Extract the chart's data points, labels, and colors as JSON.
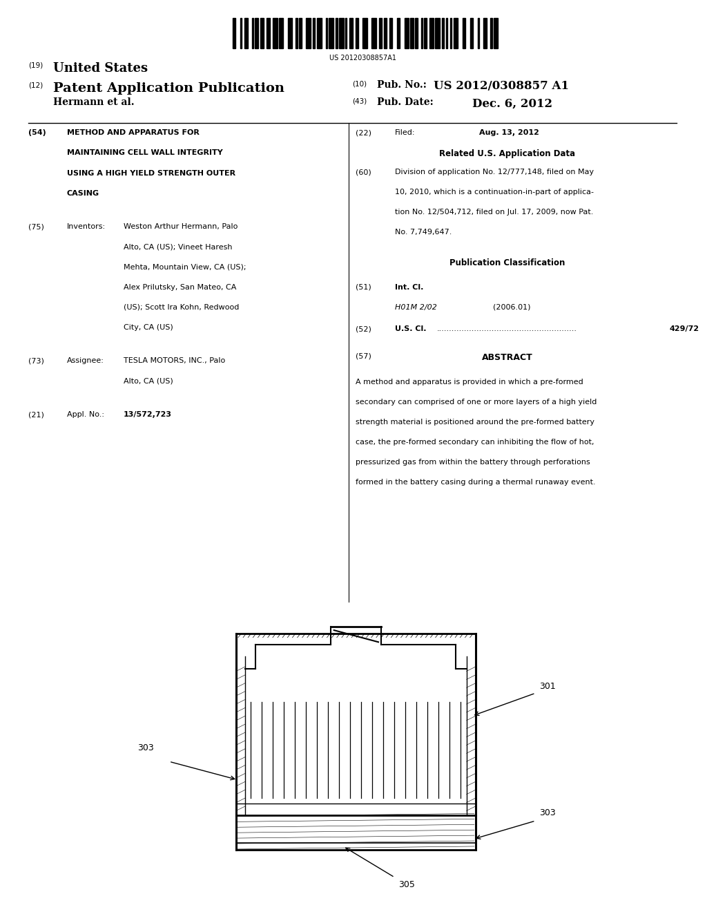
{
  "background_color": "#ffffff",
  "barcode_text": "US 20120308857A1",
  "header": {
    "number_19": "(19)",
    "united_states": "United States",
    "number_12": "(12)",
    "patent_app": "Patent Application Publication",
    "number_10": "(10)",
    "pub_no_label": "Pub. No.:",
    "pub_no_value": "US 2012/0308857 A1",
    "inventors_line": "Hermann et al.",
    "number_43": "(43)",
    "pub_date_label": "Pub. Date:",
    "pub_date_value": "Dec. 6, 2012"
  },
  "left_col": {
    "field_54_num": "(54)",
    "field_54_text": "METHOD AND APPARATUS FOR\nMAINTAINING CELL WALL INTEGRITY\nUSING A HIGH YIELD STRENGTH OUTER\nCASING",
    "field_75_num": "(75)",
    "field_75_label": "Inventors:",
    "field_75_text": "Weston Arthur Hermann, Palo\nAlto, CA (US); Vineet Haresh\nMehta, Mountain View, CA (US);\nAlex Prilutsky, San Mateo, CA\n(US); Scott Ira Kohn, Redwood\nCity, CA (US)",
    "field_73_num": "(73)",
    "field_73_label": "Assignee:",
    "field_73_text": "TESLA MOTORS, INC., Palo\nAlto, CA (US)",
    "field_21_num": "(21)",
    "field_21_label": "Appl. No.:",
    "field_21_text": "13/572,723"
  },
  "right_col": {
    "field_22_num": "(22)",
    "field_22_label": "Filed:",
    "field_22_value": "Aug. 13, 2012",
    "related_header": "Related U.S. Application Data",
    "field_60_num": "(60)",
    "field_60_text": "Division of application No. 12/777,148, filed on May\n10, 2010, which is a continuation-in-part of applica-\ntion No. 12/504,712, filed on Jul. 17, 2009, now Pat.\nNo. 7,749,647.",
    "pub_class_header": "Publication Classification",
    "field_51_num": "(51)",
    "field_51_label": "Int. Cl.",
    "field_51_class": "H01M 2/02",
    "field_51_year": "(2006.01)",
    "field_52_num": "(52)",
    "field_52_label": "U.S. Cl.",
    "field_52_dots": "........................................................",
    "field_52_value": "429/72",
    "field_57_num": "(57)",
    "field_57_label": "ABSTRACT",
    "abstract_text": "A method and apparatus is provided in which a pre-formed\nsecondary can comprised of one or more layers of a high yield\nstrength material is positioned around the pre-formed battery\ncase, the pre-formed secondary can inhibiting the flow of hot,\npressurized gas from within the battery through perforations\nformed in the battery casing during a thermal runaway event."
  },
  "diagram": {
    "label_301": "301",
    "label_303_left": "303",
    "label_303_right": "303",
    "label_305": "305"
  }
}
